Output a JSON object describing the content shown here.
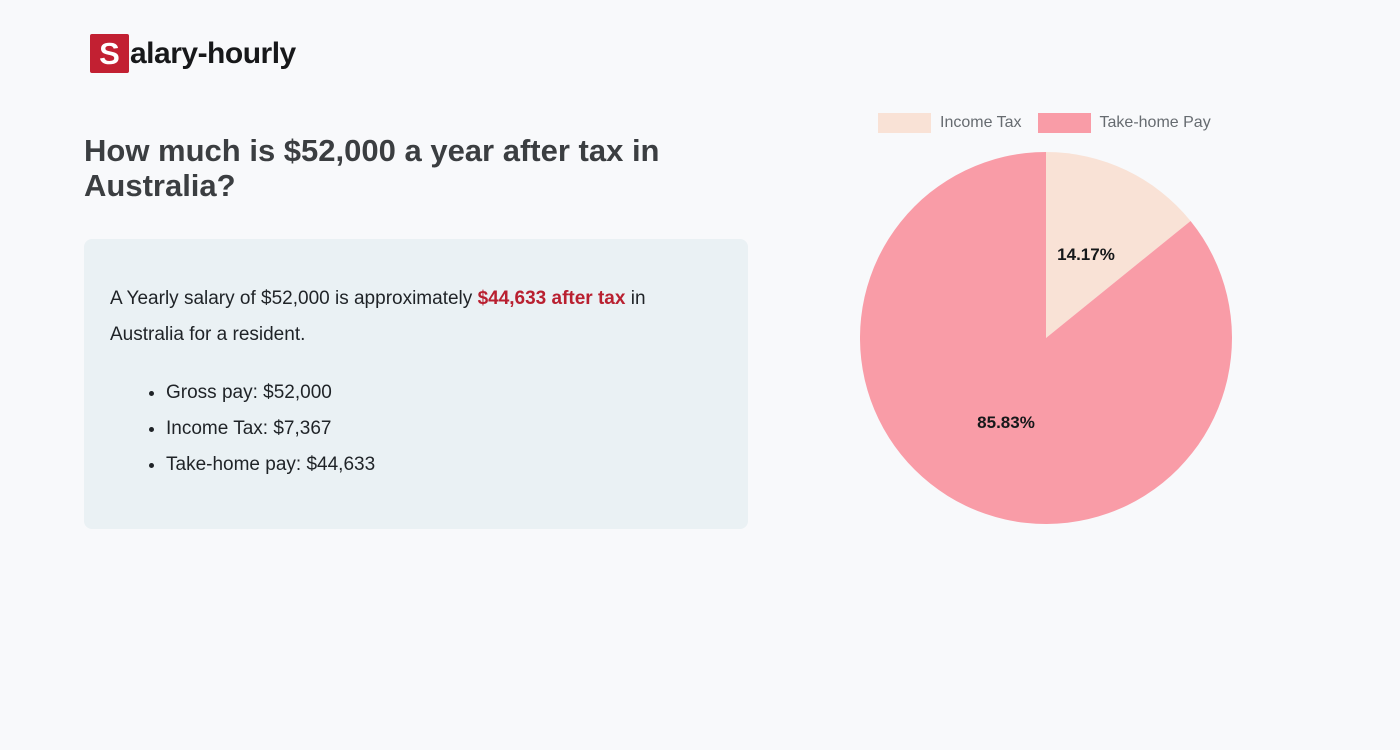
{
  "page": {
    "background": "#f8f9fb"
  },
  "logo": {
    "mark": "S",
    "text": "alary-hourly",
    "mark_bg": "#c22032"
  },
  "heading": {
    "text": "How much is $52,000 a year after tax in Australia?"
  },
  "summary": {
    "text_before": "A Yearly salary of $52,000 is approximately ",
    "highlight": "$44,633 after tax",
    "text_after": " in Australia for a resident.",
    "highlight_color": "#b92030",
    "bullets": [
      "Gross pay: $52,000",
      "Income Tax: $7,367",
      "Take-home pay: $44,633"
    ]
  },
  "chart_data": {
    "type": "pie",
    "title": "",
    "legend_position": "top",
    "start_angle_deg": 0,
    "slices": [
      {
        "label": "Income Tax",
        "value": 7367,
        "pct": 14.17,
        "display": "14.17%",
        "color": "#f9e2d6"
      },
      {
        "label": "Take-home Pay",
        "value": 44633,
        "pct": 85.83,
        "display": "85.83%",
        "color": "#f99ca7"
      }
    ]
  }
}
